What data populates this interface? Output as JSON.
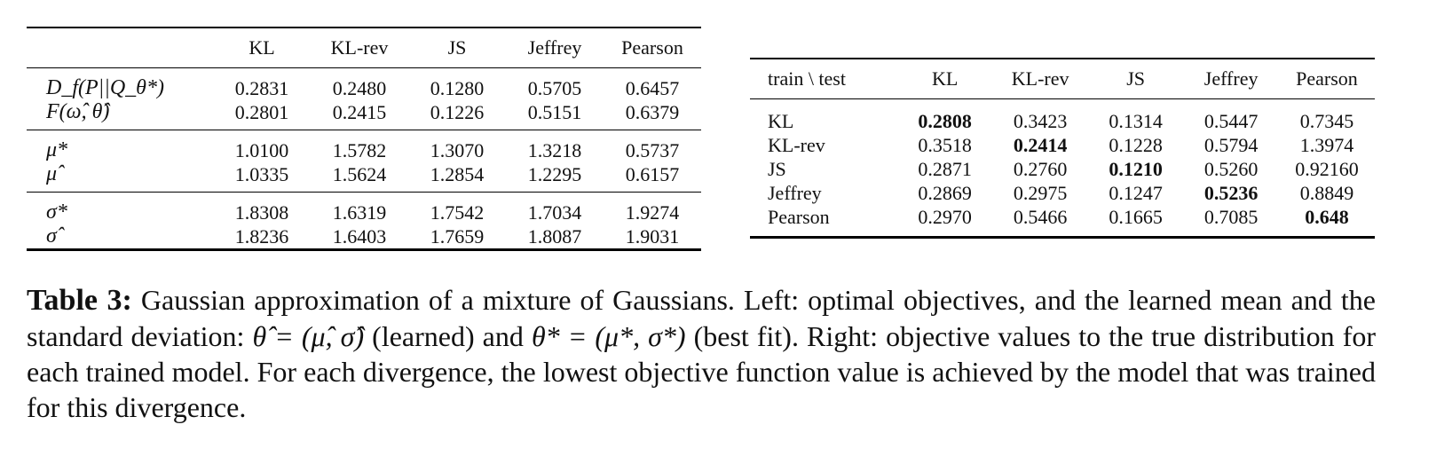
{
  "left_table": {
    "columns": [
      "KL",
      "KL-rev",
      "JS",
      "Jeffrey",
      "Pearson"
    ],
    "groups": [
      [
        {
          "label": "D_f(P||Q_θ*)",
          "values": [
            "0.2831",
            "0.2480",
            "0.1280",
            "0.5705",
            "0.6457"
          ]
        },
        {
          "label": "F(ω̂, θ̂)",
          "values": [
            "0.2801",
            "0.2415",
            "0.1226",
            "0.5151",
            "0.6379"
          ]
        }
      ],
      [
        {
          "label": "μ*",
          "values": [
            "1.0100",
            "1.5782",
            "1.3070",
            "1.3218",
            "0.5737"
          ]
        },
        {
          "label": "μ̂",
          "values": [
            "1.0335",
            "1.5624",
            "1.2854",
            "1.2295",
            "0.6157"
          ]
        }
      ],
      [
        {
          "label": "σ*",
          "values": [
            "1.8308",
            "1.6319",
            "1.7542",
            "1.7034",
            "1.9274"
          ]
        },
        {
          "label": "σ̂",
          "values": [
            "1.8236",
            "1.6403",
            "1.7659",
            "1.8087",
            "1.9031"
          ]
        }
      ]
    ]
  },
  "right_table": {
    "corner": "train \\ test",
    "columns": [
      "KL",
      "KL-rev",
      "JS",
      "Jeffrey",
      "Pearson"
    ],
    "rows": [
      {
        "label": "KL",
        "values": [
          "0.2808",
          "0.3423",
          "0.1314",
          "0.5447",
          "0.7345"
        ],
        "best": 0
      },
      {
        "label": "KL-rev",
        "values": [
          "0.3518",
          "0.2414",
          "0.1228",
          "0.5794",
          "1.3974"
        ],
        "best": 1
      },
      {
        "label": "JS",
        "values": [
          "0.2871",
          "0.2760",
          "0.1210",
          "0.5260",
          "0.92160"
        ],
        "best": 2
      },
      {
        "label": "Jeffrey",
        "values": [
          "0.2869",
          "0.2975",
          "0.1247",
          "0.5236",
          "0.8849"
        ],
        "best": 3
      },
      {
        "label": "Pearson",
        "values": [
          "0.2970",
          "0.5466",
          "0.1665",
          "0.7085",
          "0.648"
        ],
        "best": 4
      }
    ]
  },
  "caption": {
    "label": "Table 3:",
    "text_1": " Gaussian approximation of a mixture of Gaussians. Left: optimal objectives, and the learned mean and the standard deviation: ",
    "math_1": "θ̂ = (μ̂, σ̂)",
    "text_2": " (learned) and ",
    "math_2": "θ* = (μ*, σ*)",
    "text_3": " (best fit). Right: objective values to the true distribution for each trained model. For each divergence, the lowest objective function value is achieved by the model that was trained for this divergence."
  }
}
